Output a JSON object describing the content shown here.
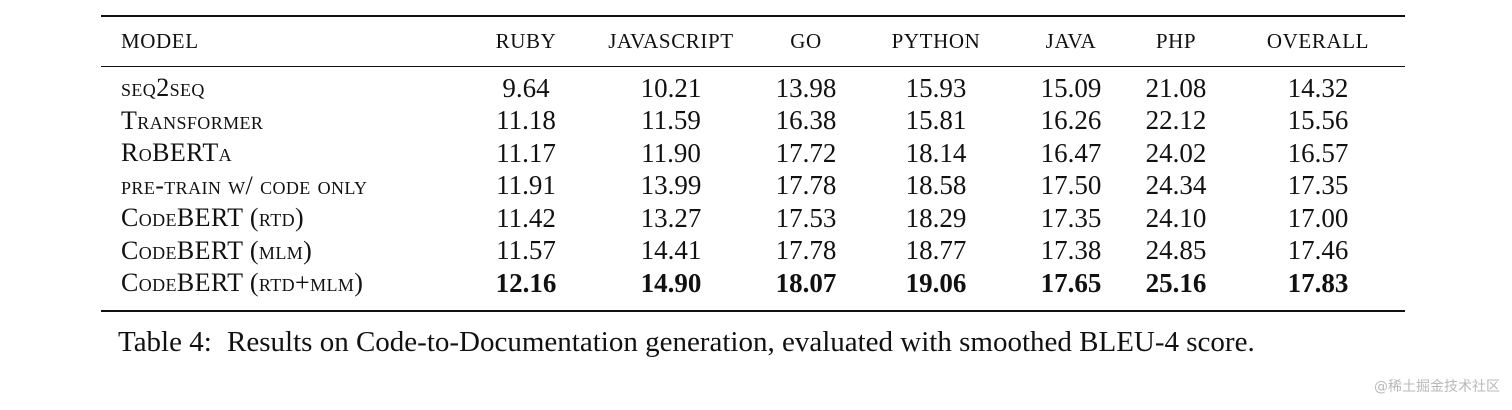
{
  "table": {
    "columns": [
      "MODEL",
      "RUBY",
      "JAVASCRIPT",
      "GO",
      "PYTHON",
      "JAVA",
      "PHP",
      "OVERALL"
    ],
    "rows": [
      {
        "model": "seq2seq",
        "values": [
          "9.64",
          "10.21",
          "13.98",
          "15.93",
          "15.09",
          "21.08",
          "14.32"
        ]
      },
      {
        "model": "Transformer",
        "values": [
          "11.18",
          "11.59",
          "16.38",
          "15.81",
          "16.26",
          "22.12",
          "15.56"
        ]
      },
      {
        "model": "RoBERTa",
        "values": [
          "11.17",
          "11.90",
          "17.72",
          "18.14",
          "16.47",
          "24.02",
          "16.57"
        ]
      },
      {
        "model": "pre-train w/ code only",
        "values": [
          "11.91",
          "13.99",
          "17.78",
          "18.58",
          "17.50",
          "24.34",
          "17.35"
        ]
      },
      {
        "model": "CodeBERT (rtd)",
        "values": [
          "11.42",
          "13.27",
          "17.53",
          "18.29",
          "17.35",
          "24.10",
          "17.00"
        ]
      },
      {
        "model": "CodeBERT (mlm)",
        "values": [
          "11.57",
          "14.41",
          "17.78",
          "18.77",
          "17.38",
          "24.85",
          "17.46"
        ]
      },
      {
        "model": "CodeBERT (rtd+mlm)",
        "values": [
          "12.16",
          "14.90",
          "18.07",
          "19.06",
          "17.65",
          "25.16",
          "17.83"
        ],
        "bold": true
      }
    ]
  },
  "caption": {
    "label": "Table 4:",
    "text": "Results on Code-to-Documentation generation, evaluated with smoothed BLEU-4 score."
  },
  "watermark": "@稀土掘金技术社区"
}
